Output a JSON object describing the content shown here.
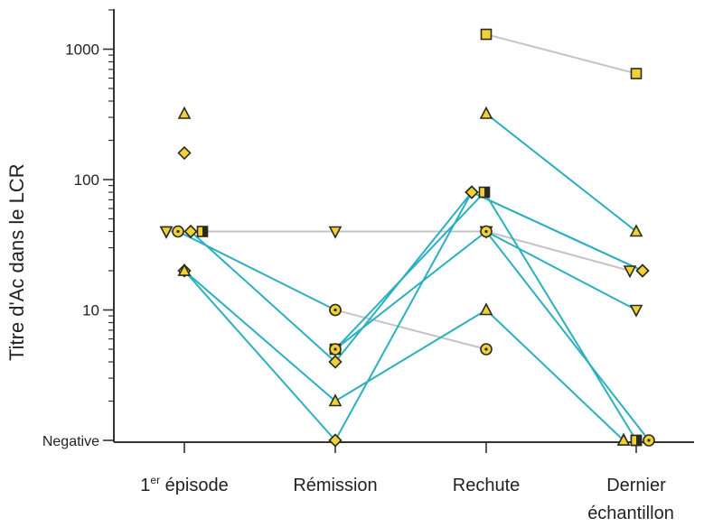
{
  "chart_data": {
    "type": "line",
    "ylabel": "Titre d'Ac dans le LCR",
    "yscale": "log",
    "categories": [
      {
        "main": "1",
        "sup": "er",
        "rest": " épisode"
      },
      {
        "main": "Rémission"
      },
      {
        "main": "Rechute"
      },
      {
        "main": "Dernier",
        "line2": "échantillon"
      }
    ],
    "y_ticks": [
      {
        "value": 1000,
        "label": "1000"
      },
      {
        "value": 100,
        "label": "100"
      },
      {
        "value": 10,
        "label": "10"
      },
      {
        "value": 1,
        "label": "Negative"
      }
    ],
    "ylim": [
      1,
      2000
    ],
    "colors": {
      "teal": "#2ab0bf",
      "gray": "#c4c4c4",
      "marker_fill": "#f0d238",
      "marker_stroke": "#2b2b1a",
      "axis": "#333333"
    },
    "series": [
      {
        "marker": "square",
        "color": "gray",
        "values": [
          null,
          null,
          1300,
          650
        ]
      },
      {
        "marker": "inverted-triangle",
        "color": "gray",
        "values": [
          40,
          40,
          40,
          20
        ]
      },
      {
        "marker": "circle",
        "color": "gray",
        "values": [
          null,
          10,
          5,
          null
        ]
      },
      {
        "marker": "triangle",
        "color": "teal",
        "values": [
          null,
          null,
          320,
          40
        ]
      },
      {
        "marker": "circle",
        "color": "teal",
        "values": [
          40,
          10,
          null,
          null
        ]
      },
      {
        "marker": "triangle",
        "color": "teal",
        "values": [
          20,
          2,
          10,
          1
        ]
      },
      {
        "marker": "diamond",
        "color": "teal",
        "values": [
          20,
          1,
          80,
          20
        ]
      },
      {
        "marker": "diamond",
        "color": "teal",
        "values": [
          null,
          null,
          80,
          20
        ]
      },
      {
        "marker": "half-square",
        "color": "teal",
        "values": [
          null,
          5,
          80,
          1
        ]
      },
      {
        "marker": "diamond",
        "color": "teal",
        "values": [
          40,
          4,
          80,
          null
        ]
      },
      {
        "marker": "inverted-triangle",
        "color": "teal",
        "values": [
          null,
          null,
          40,
          10
        ]
      },
      {
        "marker": "circle",
        "color": "teal",
        "values": [
          null,
          5,
          40,
          1
        ]
      }
    ],
    "unconnected_points": [
      {
        "marker": "triangle",
        "category": 0,
        "value": 320
      },
      {
        "marker": "diamond",
        "category": 0,
        "value": 160
      },
      {
        "marker": "half-square",
        "category": 0,
        "value": 40
      },
      {
        "marker": "inverted-triangle",
        "category": 0,
        "value": 40
      },
      {
        "marker": "triangle",
        "category": 0,
        "value": 20
      },
      {
        "marker": "triangle",
        "category": 3,
        "value": 1
      },
      {
        "marker": "half-square",
        "category": 3,
        "value": 1
      }
    ]
  }
}
